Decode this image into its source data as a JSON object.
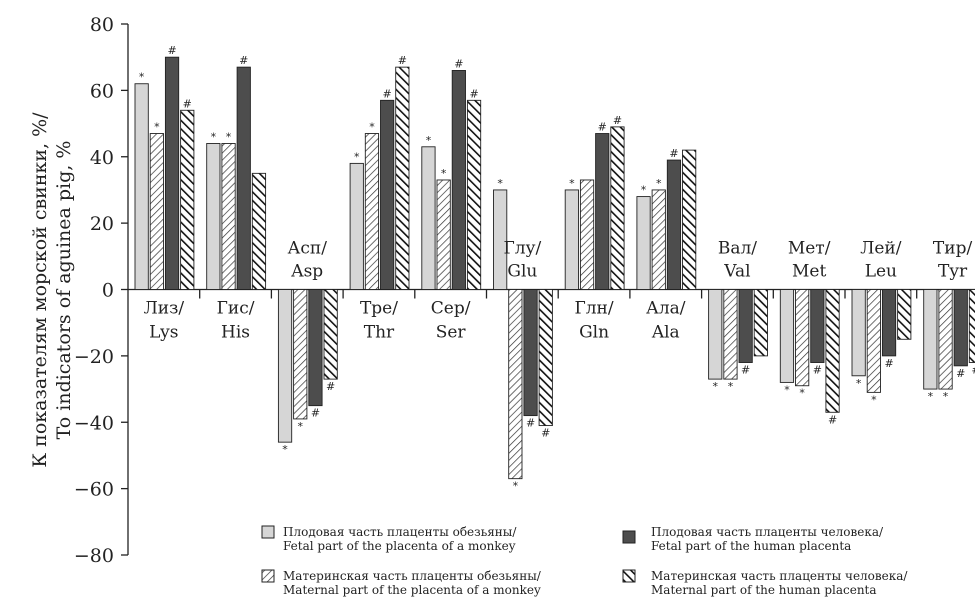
{
  "chart_data": {
    "type": "bar",
    "ylabel_line1": "К показателям морской свинки, %/",
    "ylabel_line2": "To indicators of aguinea pig, %",
    "ylim": [
      -80,
      80
    ],
    "yticks": [
      80,
      60,
      40,
      20,
      0,
      -20,
      -40,
      -60,
      -80
    ],
    "ytick_labels": [
      "80",
      "60",
      "40",
      "20",
      "0",
      "−20",
      "−40",
      "−60",
      "−80"
    ],
    "categories": [
      {
        "line1": "Лиз/",
        "line2": "Lys"
      },
      {
        "line1": "Гис/",
        "line2": "His"
      },
      {
        "line1": "Асп/",
        "line2": "Asp"
      },
      {
        "line1": "Тре/",
        "line2": "Thr"
      },
      {
        "line1": "Сер/",
        "line2": "Ser"
      },
      {
        "line1": "Глу/",
        "line2": "Glu"
      },
      {
        "line1": "Глн/",
        "line2": "Gln"
      },
      {
        "line1": "Ала/",
        "line2": "Ala"
      },
      {
        "line1": "Вал/",
        "line2": "Val"
      },
      {
        "line1": "Мет/",
        "line2": "Met"
      },
      {
        "line1": "Лей/",
        "line2": "Leu"
      },
      {
        "line1": "Тир/",
        "line2": "Tyr"
      }
    ],
    "series": [
      {
        "name": "Плодовая часть плаценты обезьяны/ Fetal part of the placenta of a monkey",
        "legend_line1": "Плодовая часть плаценты обезьяны/",
        "legend_line2": "Fetal part of the placenta of a monkey",
        "pattern": "light",
        "values": [
          62,
          44,
          -46,
          38,
          43,
          30,
          30,
          28,
          -27,
          -28,
          -26,
          -30
        ],
        "marks": [
          "*",
          "*",
          "*",
          "*",
          "*",
          "*",
          "*",
          "*",
          "*",
          "*",
          "*",
          "*"
        ]
      },
      {
        "name": "Материнская часть плаценты обезьяны/ Maternal part of the placenta of a monkey",
        "legend_line1": "Материнская часть плаценты обезьяны/",
        "legend_line2": "Maternal part of the placenta of a monkey",
        "pattern": "hatch-light",
        "values": [
          47,
          44,
          -39,
          47,
          33,
          -57,
          33,
          30,
          -27,
          -29,
          -31,
          -30
        ],
        "marks": [
          "*",
          "*",
          "*",
          "*",
          "*",
          "*",
          "",
          "*",
          "*",
          "*",
          "*",
          "*"
        ]
      },
      {
        "name": "Плодовая часть плаценты человека/ Fetal part of the human placenta",
        "legend_line1": "Плодовая часть плаценты человека/",
        "legend_line2": "Fetal part of the human placenta",
        "pattern": "dark",
        "values": [
          70,
          67,
          -35,
          57,
          66,
          -38,
          47,
          39,
          -22,
          -22,
          -20,
          -23
        ],
        "marks": [
          "#",
          "#",
          "#",
          "#",
          "#",
          "#",
          "#",
          "#",
          "#",
          "#",
          "#",
          "#"
        ]
      },
      {
        "name": "Материнская часть плаценты человека/ Maternal part of the human placenta",
        "legend_line1": "Материнская часть плаценты человека/",
        "legend_line2": "Maternal part of the human placenta",
        "pattern": "hatch-heavy",
        "values": [
          54,
          35,
          -27,
          67,
          57,
          -41,
          49,
          42,
          -20,
          -37,
          -15,
          -22
        ],
        "marks": [
          "#",
          "",
          "#",
          "#",
          "#",
          "#",
          "#",
          "",
          "",
          "#",
          "",
          "#"
        ]
      }
    ],
    "grid": false,
    "legend_position": "bottom"
  },
  "colors": {
    "light": "#d6d6d6",
    "dark": "#4d4d4d",
    "outline": "#222222"
  }
}
